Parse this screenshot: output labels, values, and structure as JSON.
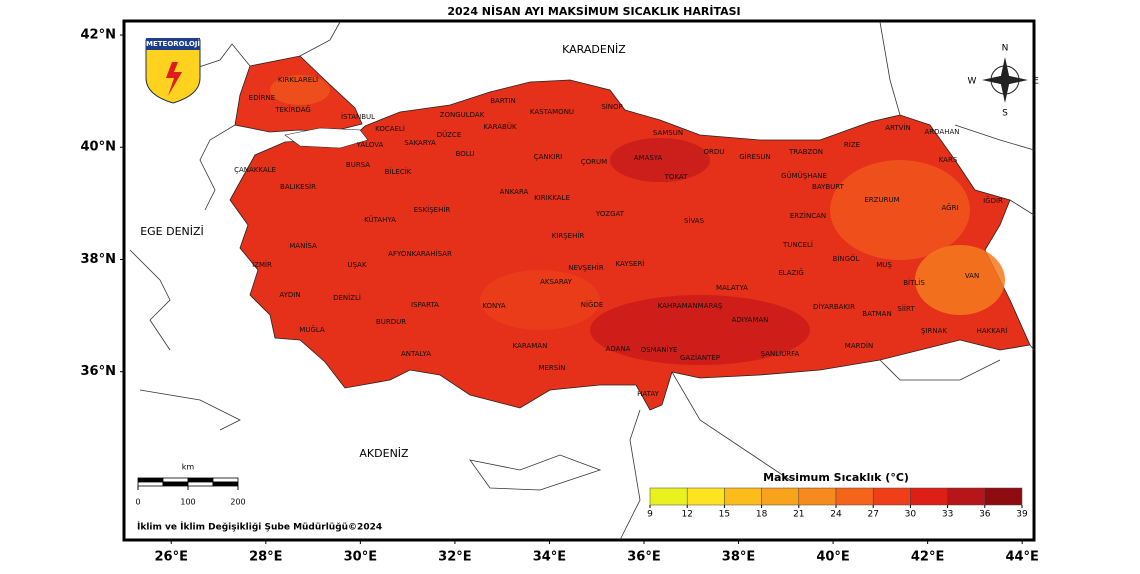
{
  "title": "2024 NİSAN AYI MAKSİMUM SICAKLIK HARİTASI",
  "logo": "METEOROLOJİ",
  "compass": [
    "N",
    "E",
    "S",
    "W"
  ],
  "seas": [
    "KARADENİZ",
    "EGE DENİZİ",
    "AKDENİZ"
  ],
  "map": {
    "xlim": [
      25,
      44.25
    ],
    "ylim": [
      33,
      42.25
    ],
    "xticks": [
      {
        "value": 26,
        "label": "26°E"
      },
      {
        "value": 28,
        "label": "28°E"
      },
      {
        "value": 30,
        "label": "30°E"
      },
      {
        "value": 32,
        "label": "32°E"
      },
      {
        "value": 34,
        "label": "34°E"
      },
      {
        "value": 36,
        "label": "36°E"
      },
      {
        "value": 38,
        "label": "38°E"
      },
      {
        "value": 40,
        "label": "40°E"
      },
      {
        "value": 42,
        "label": "42°E"
      },
      {
        "value": 44,
        "label": "44°E"
      }
    ],
    "yticks": [
      {
        "value": 36,
        "label": "36°N"
      },
      {
        "value": 38,
        "label": "38°N"
      },
      {
        "value": 40,
        "label": "40°N"
      },
      {
        "value": 42,
        "label": "42°N"
      }
    ]
  },
  "provinces": [
    "KIRKLARELİ",
    "EDİRNE",
    "TEKİRDAĞ",
    "İSTANBUL",
    "KOCAELİ",
    "ZONGULDAK",
    "BARTIN",
    "KARABÜK",
    "KASTAMONU",
    "SİNOP",
    "SAMSUN",
    "DÜZCE",
    "SAKARYA",
    "BOLU",
    "ÇANKIRI",
    "ÇORUM",
    "AMASYA",
    "ORDU",
    "GİRESUN",
    "TRABZON",
    "RİZE",
    "ARTVİN",
    "ARDAHAN",
    "KARS",
    "BURSA",
    "YALOVA",
    "BİLECİK",
    "ÇANAKKALE",
    "BALIKESİR",
    "ESKİŞEHİR",
    "ANKARA",
    "KIRIKKALE",
    "TOKAT",
    "GÜMÜŞHANE",
    "BAYBURT",
    "ERZURUM",
    "AĞRI",
    "IĞDIR",
    "KÜTAHYA",
    "YOZGAT",
    "SİVAS",
    "ERZİNCAN",
    "MANİSA",
    "KIRŞEHİR",
    "TUNCELİ",
    "BİNGÖL",
    "MUŞ",
    "VAN",
    "İZMİR",
    "UŞAK",
    "AFYONKARAHİSAR",
    "NEVŞEHİR",
    "KAYSERİ",
    "ELAZIĞ",
    "BİTLİS",
    "AYDIN",
    "DENİZLİ",
    "AKSARAY",
    "MALATYA",
    "ISPARTA",
    "KONYA",
    "NİĞDE",
    "KAHRAMANMARAŞ",
    "DİYARBAKIR",
    "BATMAN",
    "SİİRT",
    "HAKKARİ",
    "ŞIRNAK",
    "MUĞLA",
    "BURDUR",
    "ADIYAMAN",
    "MARDİN",
    "ANTALYA",
    "KARAMAN",
    "ADANA",
    "OSMANİYE",
    "GAZİANTEP",
    "ŞANLIURFA",
    "MERSİN",
    "HATAY"
  ],
  "legend": {
    "title": "Maksimum Sıcaklık (°C)",
    "ticks": [
      9,
      12,
      15,
      18,
      21,
      24,
      27,
      30,
      33,
      36,
      39
    ],
    "colors": [
      "#e9f21e",
      "#fde41f",
      "#fcbd1c",
      "#f9a21c",
      "#f78a1d",
      "#f4651b",
      "#ef3f19",
      "#de1f18",
      "#b61519",
      "#8e0b10"
    ]
  },
  "scale_bar": {
    "unit": "km",
    "ticks": [
      0,
      100,
      200
    ]
  },
  "credit": "İklim ve İklim Değişikliği Şube Müdürlüğü©2024"
}
